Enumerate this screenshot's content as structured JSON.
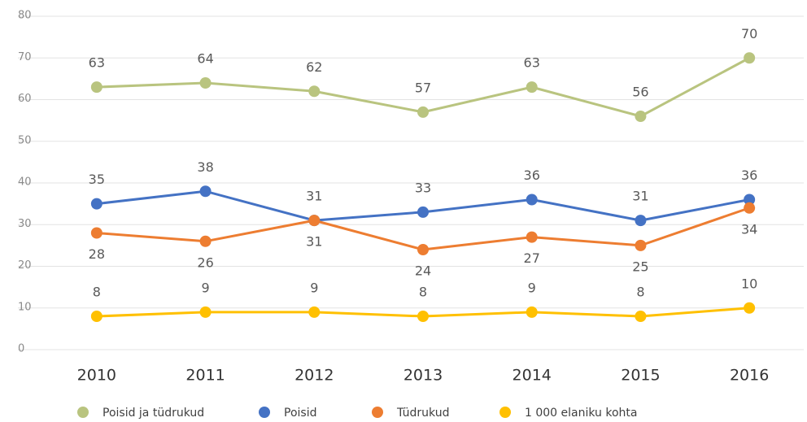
{
  "chart_data": {
    "type": "line",
    "categories": [
      "2010",
      "2011",
      "2012",
      "2013",
      "2014",
      "2015",
      "2016"
    ],
    "series": [
      {
        "name": "Poisid ja tüdrukud",
        "color": "#b9c47f",
        "values": [
          63,
          64,
          62,
          57,
          63,
          56,
          70
        ]
      },
      {
        "name": "Poisid",
        "color": "#4472c4",
        "values": [
          35,
          38,
          31,
          33,
          36,
          31,
          36
        ]
      },
      {
        "name": "Tüdrukud",
        "color": "#ed7d31",
        "values": [
          28,
          26,
          31,
          24,
          27,
          25,
          34
        ]
      },
      {
        "name": "1 000 elaniku kohta",
        "color": "#ffc000",
        "values": [
          8,
          9,
          9,
          8,
          9,
          8,
          10
        ]
      }
    ],
    "ylim": [
      0,
      80
    ],
    "yticks": [
      0,
      10,
      20,
      30,
      40,
      50,
      60,
      70,
      80
    ],
    "grid": true
  }
}
